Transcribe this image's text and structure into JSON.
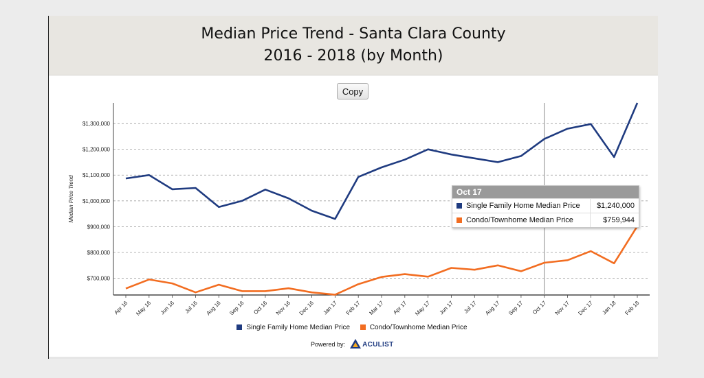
{
  "header": {
    "title_line1": "Median Price Trend - Santa Clara County",
    "title_line2": "2016 - 2018 (by Month)"
  },
  "toolbar": {
    "copy_label": "Copy"
  },
  "tooltip": {
    "title": "Oct 17",
    "rows": [
      {
        "name": "Single Family Home Median Price",
        "value": "$1,240,000",
        "color": "#1f3b80"
      },
      {
        "name": "Condo/Townhome Median Price",
        "value": "$759,944",
        "color": "#f26d21"
      }
    ]
  },
  "legend": {
    "items": [
      {
        "name": "Single Family Home Median Price",
        "color": "#1f3b80"
      },
      {
        "name": "Condo/Townhome Median Price",
        "color": "#f26d21"
      }
    ]
  },
  "powered_by": {
    "label": "Powered by:",
    "brand": "ACULIST"
  },
  "chart_data": {
    "type": "line",
    "ylabel": "Median Price Trend",
    "ylim": [
      635000,
      1380000
    ],
    "yticks": [
      700000,
      800000,
      900000,
      1000000,
      1100000,
      1200000,
      1300000
    ],
    "ytick_labels": [
      "$700,000",
      "$800,000",
      "$900,000",
      "$1,000,000",
      "$1,100,000",
      "$1,200,000",
      "$1,300,000"
    ],
    "grid": true,
    "legend_position": "bottom",
    "highlight_category": "Oct 17",
    "categories": [
      "Apr 16",
      "May 16",
      "Jun 16",
      "Jul 16",
      "Aug 16",
      "Sep 16",
      "Oct 16",
      "Nov 16",
      "Dec 16",
      "Jan 17",
      "Feb 17",
      "Mar 17",
      "Apr 17",
      "May 17",
      "Jun 17",
      "Jul 17",
      "Aug 17",
      "Sep 17",
      "Oct 17",
      "Nov 17",
      "Dec 17",
      "Jan 18",
      "Feb 18"
    ],
    "series": [
      {
        "name": "Single Family Home Median Price",
        "color": "#1f3b80",
        "values": [
          1087000,
          1100000,
          1045000,
          1050000,
          976000,
          1000000,
          1044000,
          1010000,
          962000,
          930000,
          1093000,
          1130000,
          1160000,
          1200000,
          1180000,
          1165000,
          1150000,
          1174000,
          1240000,
          1280000,
          1298000,
          1170000,
          1380000
        ]
      },
      {
        "name": "Condo/Townhome Median Price",
        "color": "#f26d21",
        "values": [
          660000,
          695000,
          680000,
          645000,
          675000,
          650000,
          650000,
          661000,
          645000,
          636000,
          677000,
          705000,
          716000,
          706000,
          740000,
          733000,
          750000,
          727000,
          759944,
          770000,
          805000,
          758000,
          902000
        ]
      }
    ]
  }
}
